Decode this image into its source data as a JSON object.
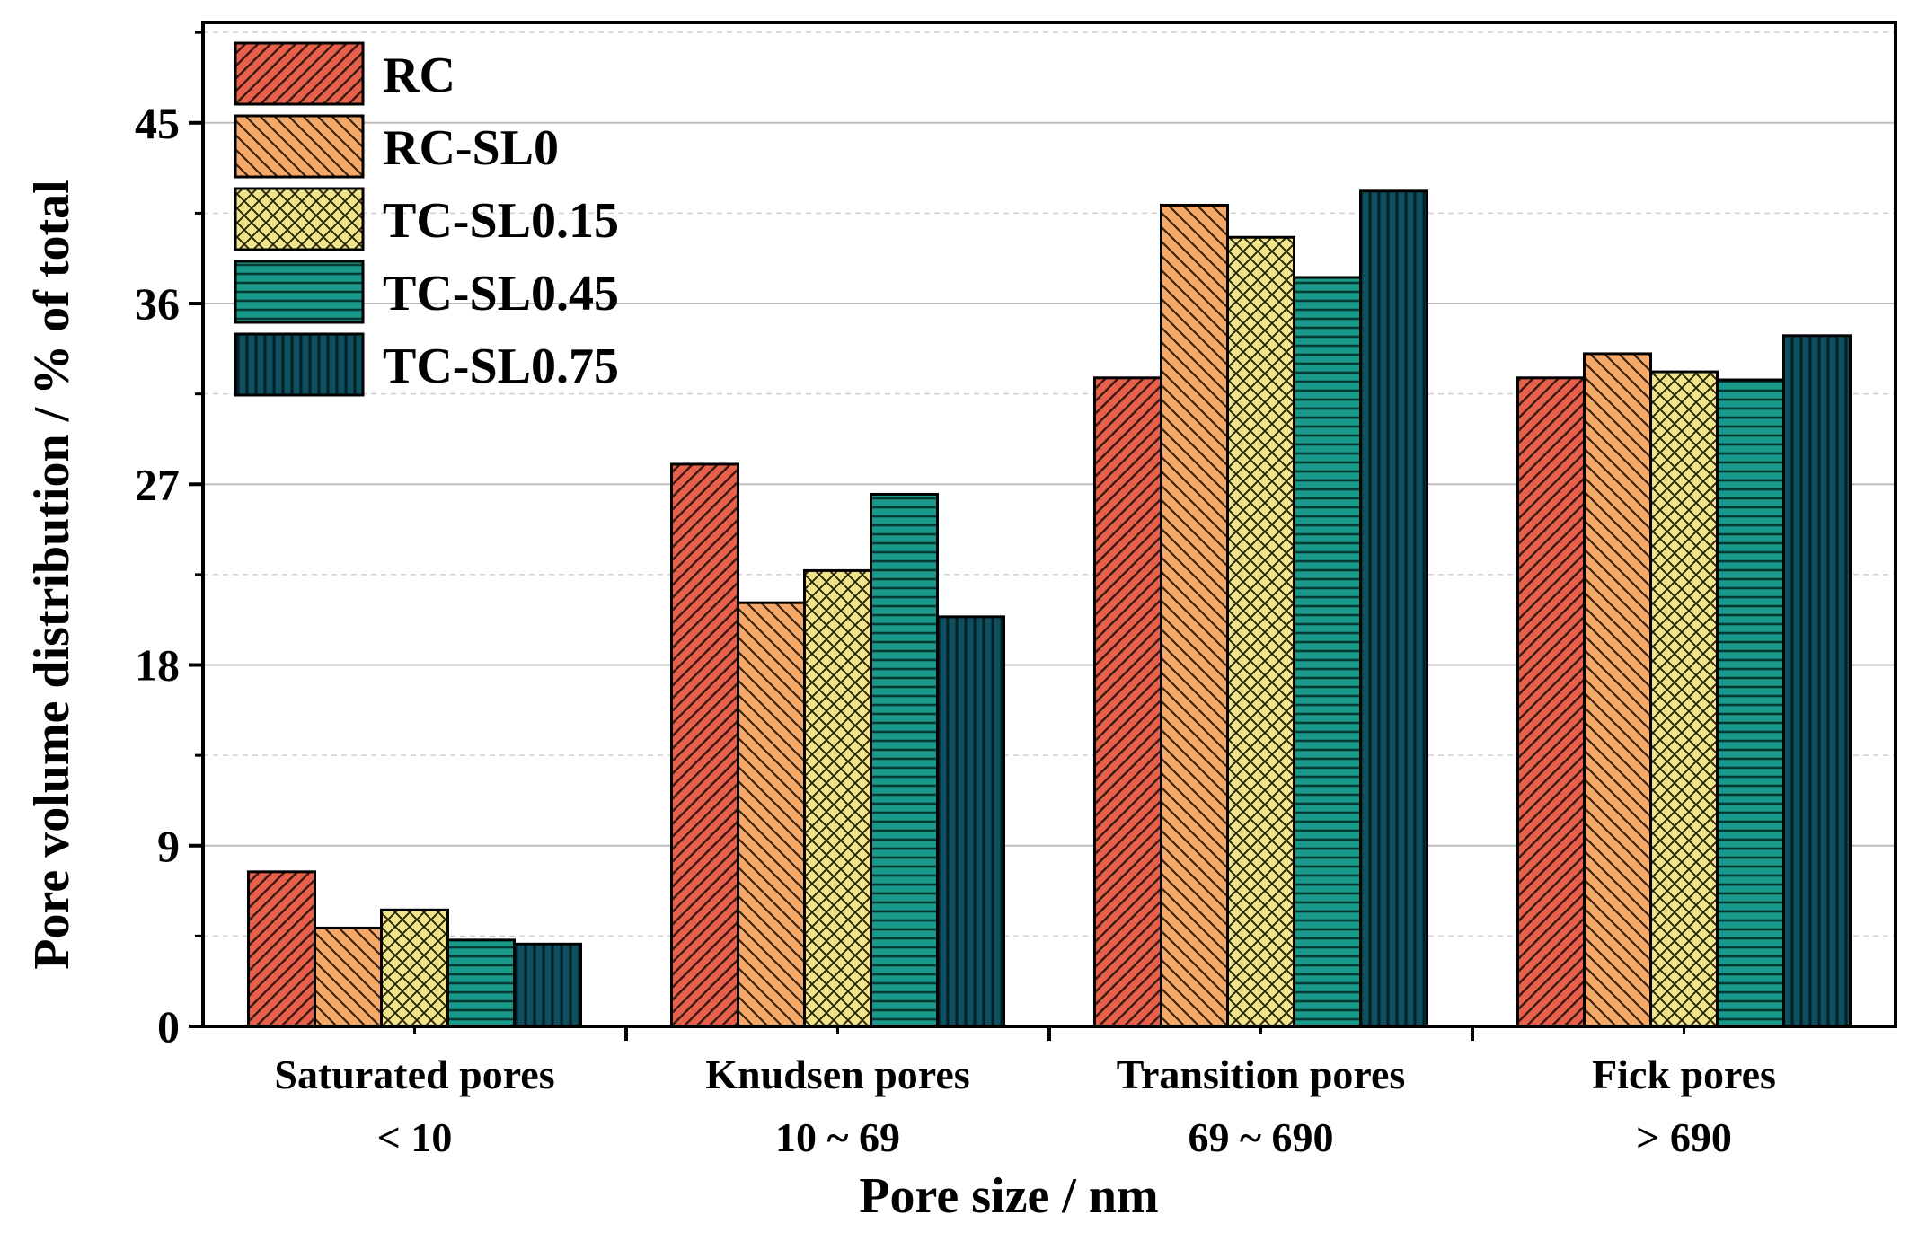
{
  "chart_data": {
    "type": "bar",
    "xlabel": "Pore size / nm",
    "ylabel": "Pore volume distribution / % of total",
    "ylim": [
      0,
      50
    ],
    "yticks": [
      0,
      9,
      18,
      27,
      36,
      45
    ],
    "minor_grid": [
      4.5,
      13.5,
      22.5,
      31.5,
      40.5,
      49.5
    ],
    "grid": true,
    "legend_position": "top-left",
    "categories": [
      {
        "name": "Saturated pores",
        "range": "< 10"
      },
      {
        "name": "Knudsen pores",
        "range": "10 ~ 69"
      },
      {
        "name": "Transition pores",
        "range": "69 ~ 690"
      },
      {
        "name": "Fick pores",
        "range": "> 690"
      }
    ],
    "series": [
      {
        "name": "RC",
        "color": "#e8604a",
        "pattern": "diag-up-dense",
        "values": [
          7.7,
          28.0,
          32.3,
          32.3
        ]
      },
      {
        "name": "RC-SL0",
        "color": "#f5a868",
        "pattern": "diag-down",
        "values": [
          4.9,
          21.1,
          40.9,
          33.5
        ]
      },
      {
        "name": "TC-SL0.15",
        "color": "#f2e48a",
        "pattern": "crosshatch",
        "values": [
          5.8,
          22.7,
          39.3,
          32.6
        ]
      },
      {
        "name": "TC-SL0.45",
        "color": "#1a9a8a",
        "pattern": "horizontal",
        "values": [
          4.3,
          26.5,
          37.3,
          32.2
        ]
      },
      {
        "name": "TC-SL0.75",
        "color": "#0d4f5e",
        "pattern": "vertical",
        "values": [
          4.1,
          20.4,
          41.6,
          34.4
        ]
      }
    ]
  }
}
